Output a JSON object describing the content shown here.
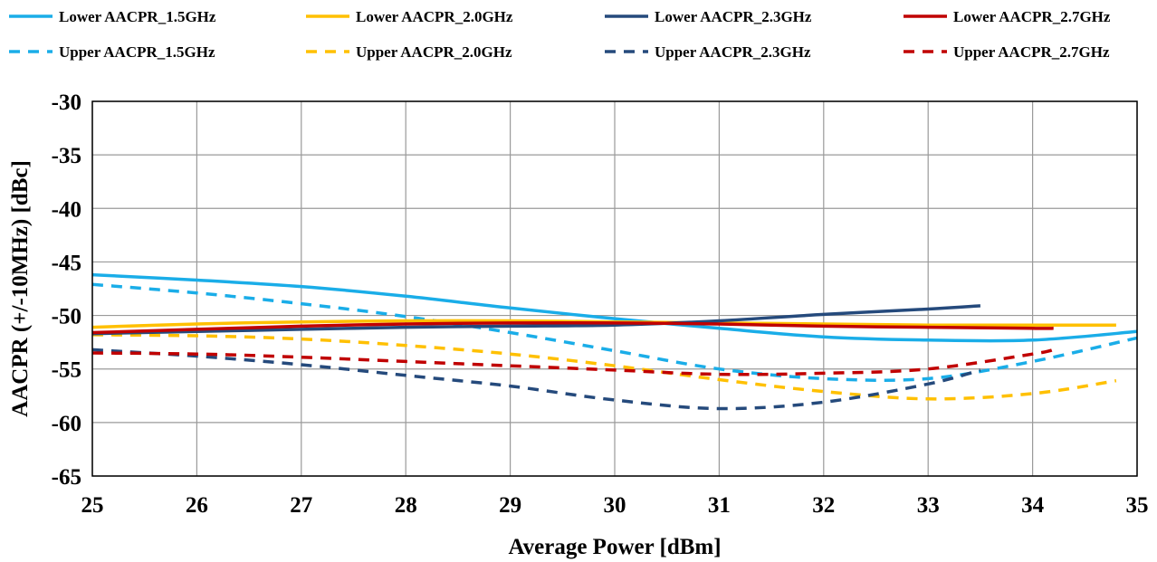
{
  "chart_data": {
    "type": "line",
    "xlabel": "Average Power [dBm]",
    "ylabel": "AACPR (+/-10MHz) [dBc]",
    "xlim": [
      25,
      35
    ],
    "ylim": [
      -65,
      -30
    ],
    "xticks": [
      "25",
      "26",
      "27",
      "28",
      "29",
      "30",
      "31",
      "32",
      "33",
      "34",
      "35"
    ],
    "yticks": [
      "-30",
      "-35",
      "-40",
      "-45",
      "-50",
      "-55",
      "-60",
      "-65"
    ],
    "grid": true,
    "legend_position": "top",
    "series": [
      {
        "name": "Lower AACPR_1.5GHz",
        "color": "#1AADE8",
        "dash": "solid",
        "x": [
          25,
          26,
          27,
          28,
          29,
          30,
          31,
          32,
          33,
          34,
          35
        ],
        "y": [
          -46.2,
          -46.7,
          -47.3,
          -48.2,
          -49.3,
          -50.3,
          -51.2,
          -52.0,
          -52.3,
          -52.3,
          -51.5
        ]
      },
      {
        "name": "Lower AACPR_2.0GHz",
        "color": "#FFC000",
        "dash": "solid",
        "x": [
          25,
          26,
          27,
          28,
          29,
          30,
          31,
          32,
          33,
          34,
          34.8
        ],
        "y": [
          -51.1,
          -50.8,
          -50.6,
          -50.5,
          -50.5,
          -50.6,
          -50.7,
          -50.8,
          -50.9,
          -50.9,
          -50.9
        ]
      },
      {
        "name": "Lower AACPR_2.3GHz",
        "color": "#254A7C",
        "dash": "solid",
        "x": [
          25,
          26,
          27,
          28,
          29,
          30,
          31,
          32,
          33,
          33.5
        ],
        "y": [
          -51.7,
          -51.5,
          -51.3,
          -51.1,
          -51.0,
          -50.9,
          -50.5,
          -49.9,
          -49.4,
          -49.1
        ]
      },
      {
        "name": "Lower AACPR_2.7GHz",
        "color": "#C00000",
        "dash": "solid",
        "x": [
          25,
          26,
          27,
          28,
          29,
          30,
          31,
          32,
          33,
          34,
          34.2
        ],
        "y": [
          -51.6,
          -51.3,
          -51.0,
          -50.8,
          -50.7,
          -50.7,
          -50.8,
          -51.0,
          -51.1,
          -51.2,
          -51.2
        ]
      },
      {
        "name": "Upper AACPR_1.5GHz",
        "color": "#1AADE8",
        "dash": "dashed",
        "x": [
          25,
          26,
          27,
          28,
          29,
          30,
          31,
          32,
          33,
          34,
          35
        ],
        "y": [
          -47.1,
          -47.9,
          -48.9,
          -50.1,
          -51.6,
          -53.3,
          -55.0,
          -55.9,
          -55.9,
          -54.3,
          -52.1
        ]
      },
      {
        "name": "Upper AACPR_2.0GHz",
        "color": "#FFC000",
        "dash": "dashed",
        "x": [
          25,
          26,
          27,
          28,
          29,
          30,
          31,
          32,
          33,
          34,
          34.8
        ],
        "y": [
          -51.8,
          -51.9,
          -52.2,
          -52.8,
          -53.6,
          -54.7,
          -56.0,
          -57.1,
          -57.8,
          -57.3,
          -56.1
        ]
      },
      {
        "name": "Upper AACPR_2.3GHz",
        "color": "#254A7C",
        "dash": "dashed",
        "x": [
          25,
          26,
          27,
          28,
          29,
          30,
          31,
          32,
          33,
          33.5
        ],
        "y": [
          -53.2,
          -53.8,
          -54.6,
          -55.6,
          -56.6,
          -57.9,
          -58.7,
          -58.1,
          -56.4,
          -55.1
        ]
      },
      {
        "name": "Upper AACPR_2.7GHz",
        "color": "#C00000",
        "dash": "dashed",
        "x": [
          25,
          26,
          27,
          28,
          29,
          30,
          31,
          32,
          33,
          34,
          34.2
        ],
        "y": [
          -53.5,
          -53.6,
          -53.9,
          -54.3,
          -54.7,
          -55.1,
          -55.5,
          -55.4,
          -55.0,
          -53.6,
          -53.2
        ]
      }
    ]
  }
}
